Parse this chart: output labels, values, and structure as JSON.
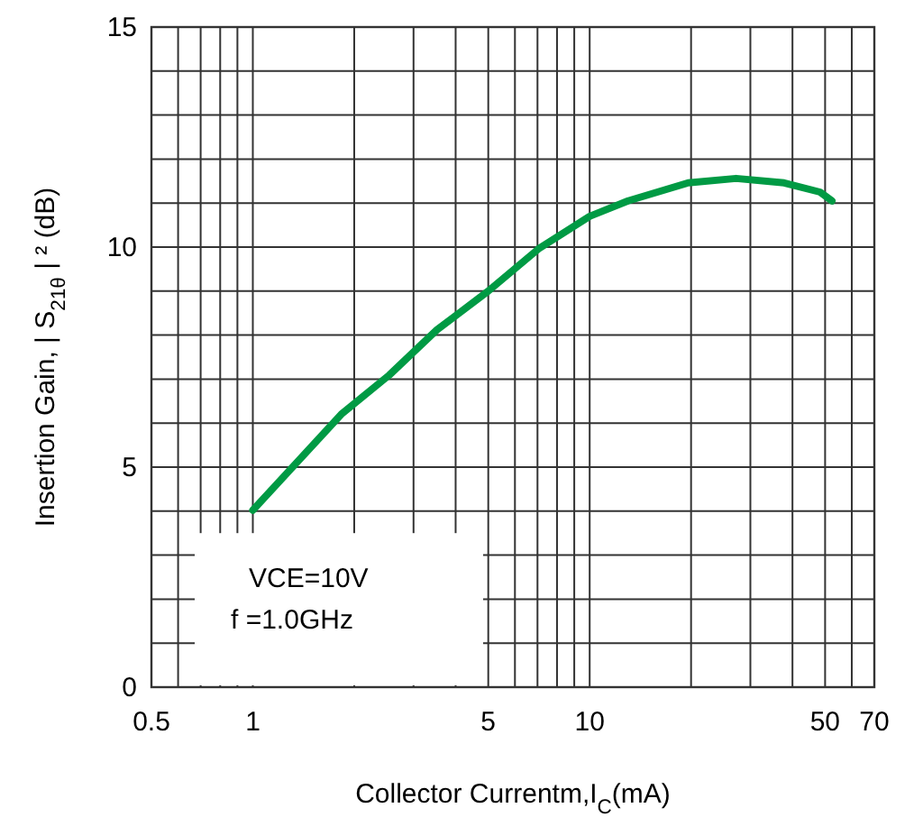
{
  "chart_data": {
    "type": "line",
    "xlabel": "Collector Currentm,I$_{C}$(mA)",
    "ylabel": "Insertion Gain, | S$_{21θ}$ | ² (dB)",
    "log": "x",
    "grid": true,
    "marker": "none",
    "line_style": "solid",
    "xlim": [
      0.5,
      70
    ],
    "xticks": [
      0.5,
      1,
      5,
      10,
      50,
      70
    ],
    "ylim": [
      0,
      15
    ],
    "yticks": [
      0,
      5,
      10,
      15
    ],
    "annotations": [
      "VCE=10V",
      "f =1.0GHz"
    ],
    "series": [
      {
        "color": "#009a44",
        "x": [
          1,
          1.83,
          2.54,
          3.52,
          5,
          7.05,
          10,
          13,
          19.6,
          27.2,
          37.8,
          48.3,
          52.4
        ],
        "values": [
          4.02,
          6.2,
          7.09,
          8.12,
          9.0,
          9.96,
          10.7,
          11.05,
          11.46,
          11.56,
          11.46,
          11.25,
          11.05
        ]
      }
    ]
  }
}
